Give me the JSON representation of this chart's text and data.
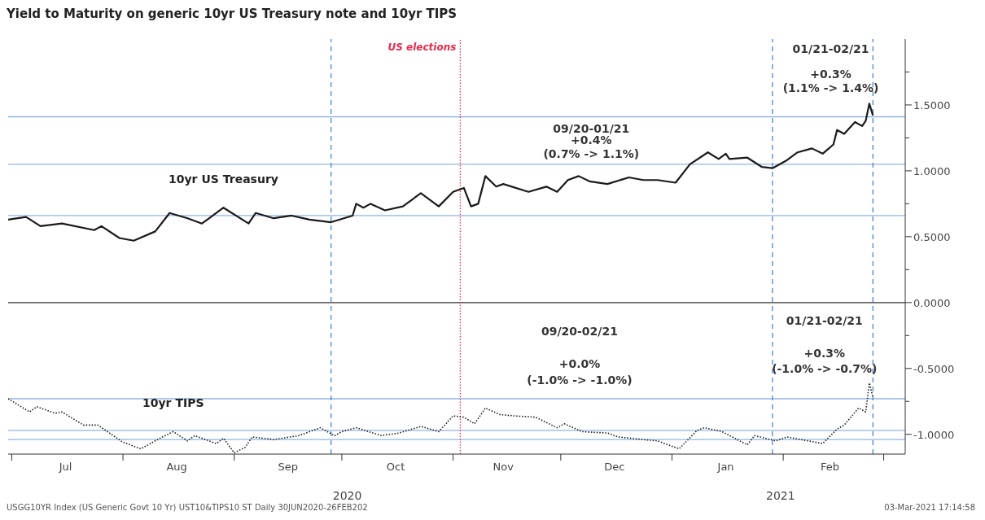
{
  "chart_data": {
    "type": "line",
    "title": "Yield to Maturity on generic 10yr US Treasury note and 10yr TIPS",
    "xlim": [
      "2020-06-30",
      "2021-03-07"
    ],
    "xticks": [
      {
        "value": "2020-07-01",
        "label": null
      },
      {
        "value": "2020-07-16",
        "label": "Jul"
      },
      {
        "value": "2020-08-01",
        "label": null
      },
      {
        "value": "2020-08-16",
        "label": "Aug"
      },
      {
        "value": "2020-09-01",
        "label": null
      },
      {
        "value": "2020-09-16",
        "label": "Sep"
      },
      {
        "value": "2020-10-01",
        "label": null
      },
      {
        "value": "2020-10-16",
        "label": "Oct"
      },
      {
        "value": "2020-11-01",
        "label": null
      },
      {
        "value": "2020-11-15",
        "label": "Nov"
      },
      {
        "value": "2020-12-01",
        "label": null
      },
      {
        "value": "2020-12-16",
        "label": "Dec"
      },
      {
        "value": "2021-01-01",
        "label": null
      },
      {
        "value": "2021-01-16",
        "label": "Jan"
      },
      {
        "value": "2021-02-01",
        "label": null
      },
      {
        "value": "2021-02-14",
        "label": "Feb"
      },
      {
        "value": "2021-03-01",
        "label": null
      }
    ],
    "ylim": [
      -1.15,
      2.0
    ],
    "yticks": [
      {
        "value": 1.75,
        "label": null
      },
      {
        "value": 1.5,
        "label": "1.5000"
      },
      {
        "value": 1.25,
        "label": null
      },
      {
        "value": 1.0,
        "label": "1.0000"
      },
      {
        "value": 0.75,
        "label": null
      },
      {
        "value": 0.5,
        "label": "0.5000"
      },
      {
        "value": 0.25,
        "label": null
      },
      {
        "value": 0.0,
        "label": "0.0000"
      },
      {
        "value": -0.25,
        "label": null
      },
      {
        "value": -0.5,
        "label": "-0.5000"
      },
      {
        "value": -0.75,
        "label": null
      },
      {
        "value": -1.0,
        "label": "-1.0000"
      }
    ],
    "marker": "none",
    "series": [
      {
        "name": "10yr US Treasury",
        "color": "#1a1a1a",
        "line_style": "solid",
        "x": [
          "2020-06-30",
          "2020-07-05",
          "2020-07-09",
          "2020-07-15",
          "2020-07-24",
          "2020-07-26",
          "2020-07-31",
          "2020-08-04",
          "2020-08-10",
          "2020-08-14",
          "2020-08-19",
          "2020-08-23",
          "2020-08-29",
          "2020-09-05",
          "2020-09-07",
          "2020-09-12",
          "2020-09-17",
          "2020-09-22",
          "2020-09-28",
          "2020-10-04",
          "2020-10-05",
          "2020-10-07",
          "2020-10-09",
          "2020-10-13",
          "2020-10-18",
          "2020-10-23",
          "2020-10-28",
          "2020-11-01",
          "2020-11-04",
          "2020-11-06",
          "2020-11-08",
          "2020-11-10",
          "2020-11-13",
          "2020-11-15",
          "2020-11-22",
          "2020-11-27",
          "2020-11-30",
          "2020-12-03",
          "2020-12-06",
          "2020-12-09",
          "2020-12-14",
          "2020-12-20",
          "2020-12-24",
          "2020-12-28",
          "2021-01-02",
          "2021-01-06",
          "2021-01-11",
          "2021-01-14",
          "2021-01-16",
          "2021-01-17",
          "2021-01-22",
          "2021-01-26",
          "2021-01-29",
          "2021-02-02",
          "2021-02-05",
          "2021-02-09",
          "2021-02-12",
          "2021-02-15",
          "2021-02-16",
          "2021-02-18",
          "2021-02-21",
          "2021-02-23",
          "2021-02-24",
          "2021-02-25",
          "2021-02-26"
        ],
        "values": [
          0.63,
          0.65,
          0.58,
          0.6,
          0.55,
          0.58,
          0.49,
          0.47,
          0.54,
          0.68,
          0.64,
          0.6,
          0.72,
          0.6,
          0.68,
          0.64,
          0.66,
          0.63,
          0.61,
          0.66,
          0.75,
          0.72,
          0.75,
          0.7,
          0.73,
          0.83,
          0.73,
          0.84,
          0.87,
          0.73,
          0.75,
          0.96,
          0.88,
          0.9,
          0.84,
          0.88,
          0.84,
          0.93,
          0.96,
          0.92,
          0.9,
          0.95,
          0.93,
          0.93,
          0.91,
          1.05,
          1.14,
          1.09,
          1.13,
          1.09,
          1.1,
          1.03,
          1.02,
          1.08,
          1.14,
          1.17,
          1.13,
          1.2,
          1.31,
          1.28,
          1.37,
          1.34,
          1.38,
          1.51,
          1.42
        ]
      },
      {
        "name": "10yr TIPS",
        "color": "#1a1a1a",
        "line_style": "dotted",
        "x": [
          "2020-06-30",
          "2020-07-06",
          "2020-07-08",
          "2020-07-13",
          "2020-07-15",
          "2020-07-21",
          "2020-07-25",
          "2020-08-01",
          "2020-08-06",
          "2020-08-12",
          "2020-08-15",
          "2020-08-19",
          "2020-08-21",
          "2020-08-27",
          "2020-08-29",
          "2020-09-01",
          "2020-09-04",
          "2020-09-06",
          "2020-09-12",
          "2020-09-19",
          "2020-09-25",
          "2020-09-29",
          "2020-10-01",
          "2020-10-05",
          "2020-10-12",
          "2020-10-17",
          "2020-10-23",
          "2020-10-28",
          "2020-11-01",
          "2020-11-04",
          "2020-11-07",
          "2020-11-10",
          "2020-11-14",
          "2020-11-18",
          "2020-11-24",
          "2020-11-30",
          "2020-12-02",
          "2020-12-07",
          "2020-12-14",
          "2020-12-17",
          "2020-12-24",
          "2020-12-28",
          "2021-01-03",
          "2021-01-08",
          "2021-01-10",
          "2021-01-15",
          "2021-01-22",
          "2021-01-24",
          "2021-01-30",
          "2021-02-02",
          "2021-02-12",
          "2021-02-16",
          "2021-02-18",
          "2021-02-22",
          "2021-02-24",
          "2021-02-25",
          "2021-02-26"
        ],
        "values": [
          -0.73,
          -0.83,
          -0.79,
          -0.84,
          -0.83,
          -0.93,
          -0.93,
          -1.06,
          -1.11,
          -1.02,
          -0.98,
          -1.05,
          -1.01,
          -1.07,
          -1.03,
          -1.14,
          -1.1,
          -1.02,
          -1.04,
          -1.01,
          -0.95,
          -1.01,
          -0.98,
          -0.95,
          -1.01,
          -0.99,
          -0.94,
          -0.98,
          -0.86,
          -0.87,
          -0.92,
          -0.8,
          -0.85,
          -0.86,
          -0.87,
          -0.95,
          -0.92,
          -0.98,
          -0.99,
          -1.02,
          -1.04,
          -1.05,
          -1.11,
          -0.97,
          -0.95,
          -0.98,
          -1.08,
          -1.01,
          -1.05,
          -1.02,
          -1.07,
          -0.96,
          -0.93,
          -0.8,
          -0.83,
          -0.61,
          -0.72
        ]
      }
    ],
    "ref_lines": [
      {
        "axis": "y",
        "value": 0,
        "color": "#333333",
        "line_style": "solid"
      },
      {
        "axis": "y",
        "value": 0.66,
        "color": "#8fb4e3",
        "line_style": "solid"
      },
      {
        "axis": "y",
        "value": 1.05,
        "color": "#8fb4e3",
        "line_style": "solid"
      },
      {
        "axis": "y",
        "value": 1.41,
        "color": "#8fb4e3",
        "line_style": "solid"
      },
      {
        "axis": "y",
        "value": -0.97,
        "color": "#8fb4e3",
        "line_style": "solid"
      },
      {
        "axis": "y",
        "value": -1.04,
        "color": "#8fb4e3",
        "line_style": "solid"
      },
      {
        "axis": "y",
        "value": -0.73,
        "color": "#8fb4e3",
        "line_style": "solid"
      },
      {
        "axis": "x",
        "value": "2020-09-28",
        "color": "#4a86d0",
        "line_style": "dashed"
      },
      {
        "axis": "x",
        "value": "2020-11-03",
        "color": "#e8294a",
        "line_style": "dotted",
        "label": "US elections"
      },
      {
        "axis": "x",
        "value": "2021-01-29",
        "color": "#4a86d0",
        "line_style": "dashed"
      },
      {
        "axis": "x",
        "value": "2021-02-26",
        "color": "#4a86d0",
        "line_style": "dashed"
      }
    ],
    "annotations": [
      "09/20-01/21",
      "+0.4%",
      "(0.7% -> 1.1%)",
      "01/21-02/21",
      "+0.3%",
      "(1.1% -> 1.4%)",
      "09/20-02/21",
      "+0.0%",
      "(-1.0% -> -1.0%)",
      "01/21-02/21",
      "+0.3%",
      "(-1.0% -> -0.7%)",
      "2020",
      "2021",
      "USGG10YR Index (US Generic Govt 10 Yr) UST10&TIPS10 ST  Daily 30JUN2020-26FEB202",
      "03-Mar-2021 17:14:58"
    ]
  }
}
